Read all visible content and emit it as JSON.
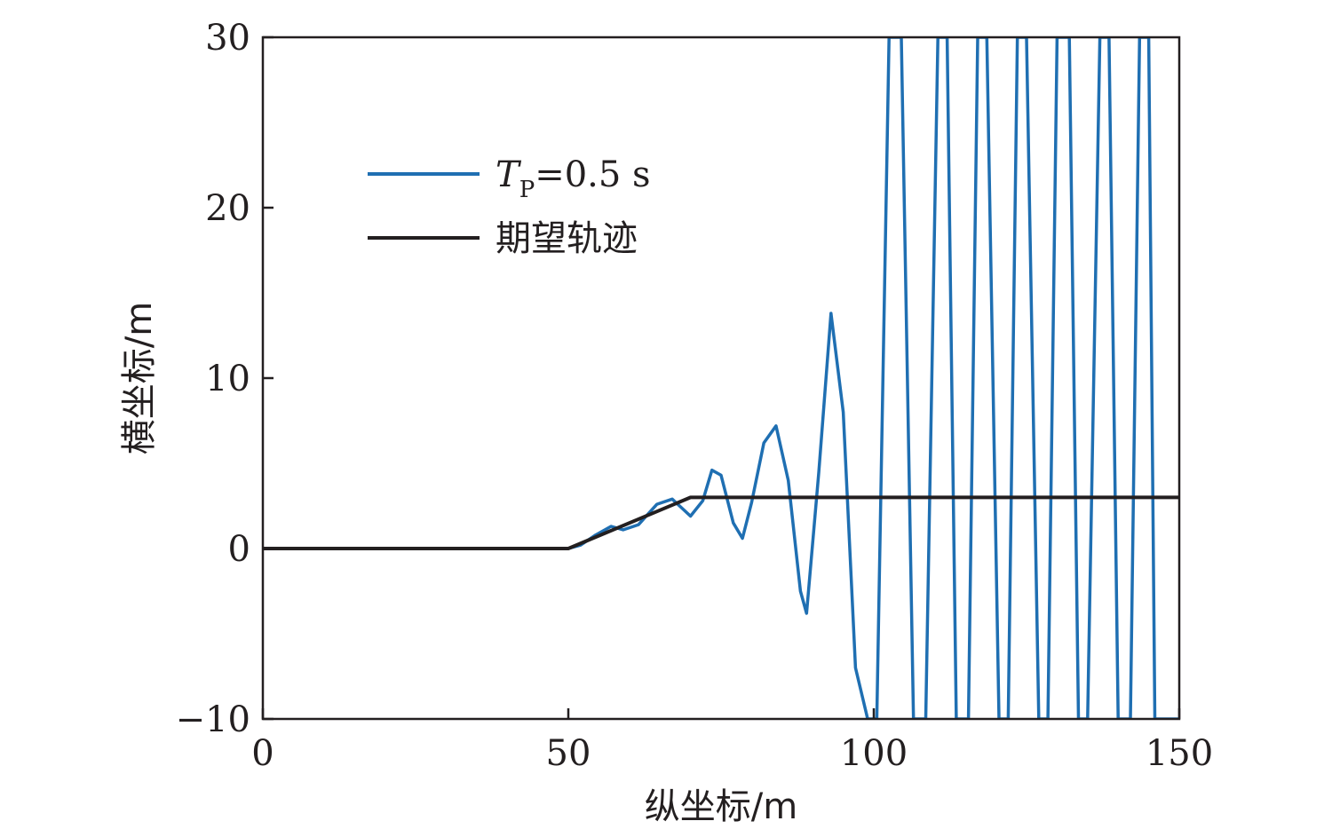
{
  "chart_data": {
    "type": "line",
    "title": "",
    "xlabel": "纵坐标/m",
    "ylabel": "横坐标/m",
    "xlim": [
      0,
      150
    ],
    "ylim": [
      -10,
      30
    ],
    "xticks": [
      "0",
      "50",
      "100",
      "150"
    ],
    "yticks": [
      "−10",
      "0",
      "10",
      "20",
      "30"
    ],
    "xtick_values": [
      0,
      50,
      100,
      150
    ],
    "ytick_values": [
      -10,
      0,
      10,
      20,
      30
    ],
    "grid": false,
    "legend_position": "upper-left",
    "legend": {
      "series1_italic": "T",
      "series1_sub": "P",
      "series1_rest": "=0.5 s",
      "series2": "期望轨迹"
    },
    "series": [
      {
        "name": "TP=0.5 s",
        "color": "#1f6fb2",
        "x": [
          0,
          50,
          52,
          54.5,
          57,
          59,
          61.5,
          63,
          64.5,
          67,
          68.5,
          70,
          72,
          73.5,
          75,
          77,
          78.5,
          80,
          82,
          84,
          86,
          88,
          89,
          91,
          93,
          95,
          97,
          99,
          100.5,
          102.5,
          104.5,
          106.5,
          108.5,
          110.5,
          112,
          113.5,
          115.5,
          117,
          118.5,
          120.5,
          122,
          123.5,
          125,
          127,
          128.5,
          130,
          132,
          133.5,
          135,
          137,
          138.5,
          140,
          142,
          143.5,
          145,
          146,
          147,
          150
        ],
        "y": [
          0,
          0,
          0.2,
          0.8,
          1.3,
          1.1,
          1.4,
          2.0,
          2.6,
          2.9,
          2.4,
          1.9,
          2.8,
          4.6,
          4.3,
          1.5,
          0.6,
          2.7,
          6.2,
          7.2,
          4.0,
          -2.5,
          -3.8,
          4.5,
          13.8,
          8.0,
          -7.0,
          -10,
          -10,
          30,
          30,
          -10,
          -10,
          30,
          30,
          -10,
          -10,
          30,
          30,
          -10,
          -10,
          30,
          30,
          -10,
          -10,
          30,
          30,
          -10,
          -10,
          30,
          30,
          -10,
          -10,
          30,
          30,
          -10,
          -10,
          -10
        ]
      },
      {
        "name": "期望轨迹",
        "color": "#231f20",
        "x": [
          0,
          50,
          70,
          150
        ],
        "y": [
          0,
          0,
          3,
          3
        ]
      }
    ]
  }
}
